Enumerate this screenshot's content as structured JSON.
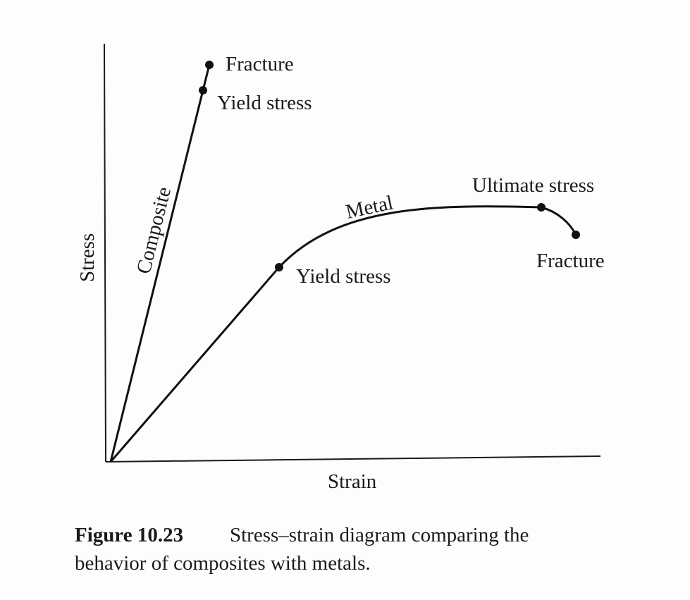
{
  "axes": {
    "y_label": "Stress",
    "x_label": "Strain"
  },
  "composite": {
    "label": "Composite",
    "yield_label": "Yield stress",
    "fracture_label": "Fracture"
  },
  "metal": {
    "label": "Metal",
    "yield_label": "Yield stress",
    "ultimate_label": "Ultimate stress",
    "fracture_label": "Fracture"
  },
  "caption": {
    "number": "Figure 10.23",
    "lines": [
      "Stress–strain diagram comparing the",
      "behavior of composites with metals."
    ]
  }
}
